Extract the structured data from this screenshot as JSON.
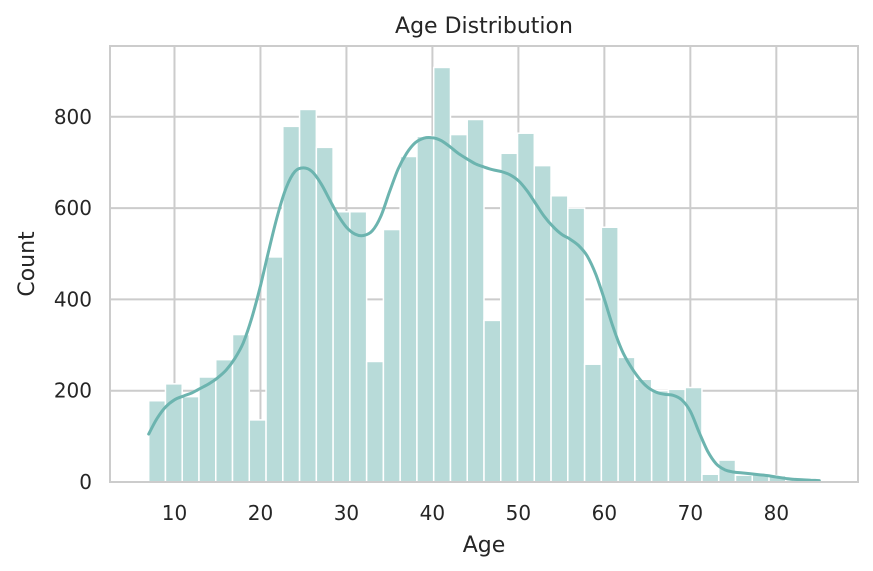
{
  "chart_data": {
    "type": "bar",
    "title": "Age Distribution",
    "xlabel": "Age",
    "ylabel": "Count",
    "xlim": [
      2.5,
      89.5
    ],
    "ylim": [
      0,
      955
    ],
    "xticks": [
      10,
      20,
      30,
      40,
      50,
      60,
      70,
      80
    ],
    "yticks": [
      0,
      200,
      400,
      600,
      800
    ],
    "grid": true,
    "bin_width": 1.95,
    "bins": [
      {
        "start": 7.0,
        "count": 178
      },
      {
        "start": 8.95,
        "count": 215
      },
      {
        "start": 10.9,
        "count": 187
      },
      {
        "start": 12.85,
        "count": 230
      },
      {
        "start": 14.8,
        "count": 268
      },
      {
        "start": 16.75,
        "count": 323
      },
      {
        "start": 18.7,
        "count": 136
      },
      {
        "start": 20.65,
        "count": 493
      },
      {
        "start": 22.6,
        "count": 779
      },
      {
        "start": 24.55,
        "count": 816
      },
      {
        "start": 26.5,
        "count": 733
      },
      {
        "start": 28.45,
        "count": 592
      },
      {
        "start": 30.4,
        "count": 592
      },
      {
        "start": 32.35,
        "count": 264
      },
      {
        "start": 34.3,
        "count": 553
      },
      {
        "start": 36.25,
        "count": 713
      },
      {
        "start": 38.2,
        "count": 757
      },
      {
        "start": 40.15,
        "count": 908
      },
      {
        "start": 42.1,
        "count": 761
      },
      {
        "start": 44.05,
        "count": 794
      },
      {
        "start": 46.0,
        "count": 354
      },
      {
        "start": 47.95,
        "count": 720
      },
      {
        "start": 49.9,
        "count": 764
      },
      {
        "start": 51.85,
        "count": 693
      },
      {
        "start": 53.8,
        "count": 627
      },
      {
        "start": 55.75,
        "count": 600
      },
      {
        "start": 57.7,
        "count": 258
      },
      {
        "start": 59.65,
        "count": 558
      },
      {
        "start": 61.6,
        "count": 273
      },
      {
        "start": 63.55,
        "count": 225
      },
      {
        "start": 65.5,
        "count": 200
      },
      {
        "start": 67.45,
        "count": 203
      },
      {
        "start": 69.4,
        "count": 207
      },
      {
        "start": 71.35,
        "count": 17
      },
      {
        "start": 73.3,
        "count": 48
      },
      {
        "start": 75.25,
        "count": 15
      },
      {
        "start": 77.2,
        "count": 16
      },
      {
        "start": 79.15,
        "count": 14
      },
      {
        "start": 81.1,
        "count": 5
      },
      {
        "start": 83.05,
        "count": 4
      }
    ],
    "kde": [
      [
        7,
        105
      ],
      [
        8,
        140
      ],
      [
        9,
        165
      ],
      [
        10,
        180
      ],
      [
        11,
        188
      ],
      [
        12,
        195
      ],
      [
        13,
        205
      ],
      [
        14,
        215
      ],
      [
        15,
        228
      ],
      [
        16,
        245
      ],
      [
        17,
        270
      ],
      [
        18,
        305
      ],
      [
        19,
        360
      ],
      [
        20,
        430
      ],
      [
        21,
        510
      ],
      [
        22,
        585
      ],
      [
        23,
        645
      ],
      [
        24,
        680
      ],
      [
        25,
        688
      ],
      [
        26,
        680
      ],
      [
        27,
        655
      ],
      [
        28,
        620
      ],
      [
        29,
        585
      ],
      [
        30,
        558
      ],
      [
        31,
        543
      ],
      [
        32,
        540
      ],
      [
        33,
        550
      ],
      [
        34,
        582
      ],
      [
        35,
        635
      ],
      [
        36,
        685
      ],
      [
        37,
        720
      ],
      [
        38,
        743
      ],
      [
        39,
        753
      ],
      [
        40,
        754
      ],
      [
        41,
        748
      ],
      [
        42,
        735
      ],
      [
        43,
        720
      ],
      [
        44,
        708
      ],
      [
        45,
        697
      ],
      [
        46,
        690
      ],
      [
        47,
        684
      ],
      [
        48,
        680
      ],
      [
        49,
        673
      ],
      [
        50,
        660
      ],
      [
        51,
        638
      ],
      [
        52,
        610
      ],
      [
        53,
        582
      ],
      [
        54,
        560
      ],
      [
        55,
        543
      ],
      [
        56,
        532
      ],
      [
        57,
        518
      ],
      [
        58,
        495
      ],
      [
        59,
        455
      ],
      [
        60,
        400
      ],
      [
        61,
        340
      ],
      [
        62,
        290
      ],
      [
        63,
        255
      ],
      [
        64,
        228
      ],
      [
        65,
        208
      ],
      [
        66,
        197
      ],
      [
        67,
        192
      ],
      [
        68,
        190
      ],
      [
        69,
        180
      ],
      [
        70,
        155
      ],
      [
        71,
        110
      ],
      [
        72,
        68
      ],
      [
        73,
        40
      ],
      [
        74,
        27
      ],
      [
        75,
        22
      ],
      [
        76,
        20
      ],
      [
        77,
        18
      ],
      [
        78,
        16
      ],
      [
        79,
        14
      ],
      [
        80,
        11
      ],
      [
        81,
        8
      ],
      [
        82,
        6
      ],
      [
        83,
        5
      ],
      [
        84,
        4
      ],
      [
        85,
        3
      ]
    ],
    "colors": {
      "bar_fill": "#b8dbd9",
      "bar_edge": "#ffffff",
      "kde_line": "#6cb4af",
      "grid": "#cccccc",
      "axes_edge": "#cccccc",
      "text": "#262626",
      "background": "#ffffff"
    }
  }
}
